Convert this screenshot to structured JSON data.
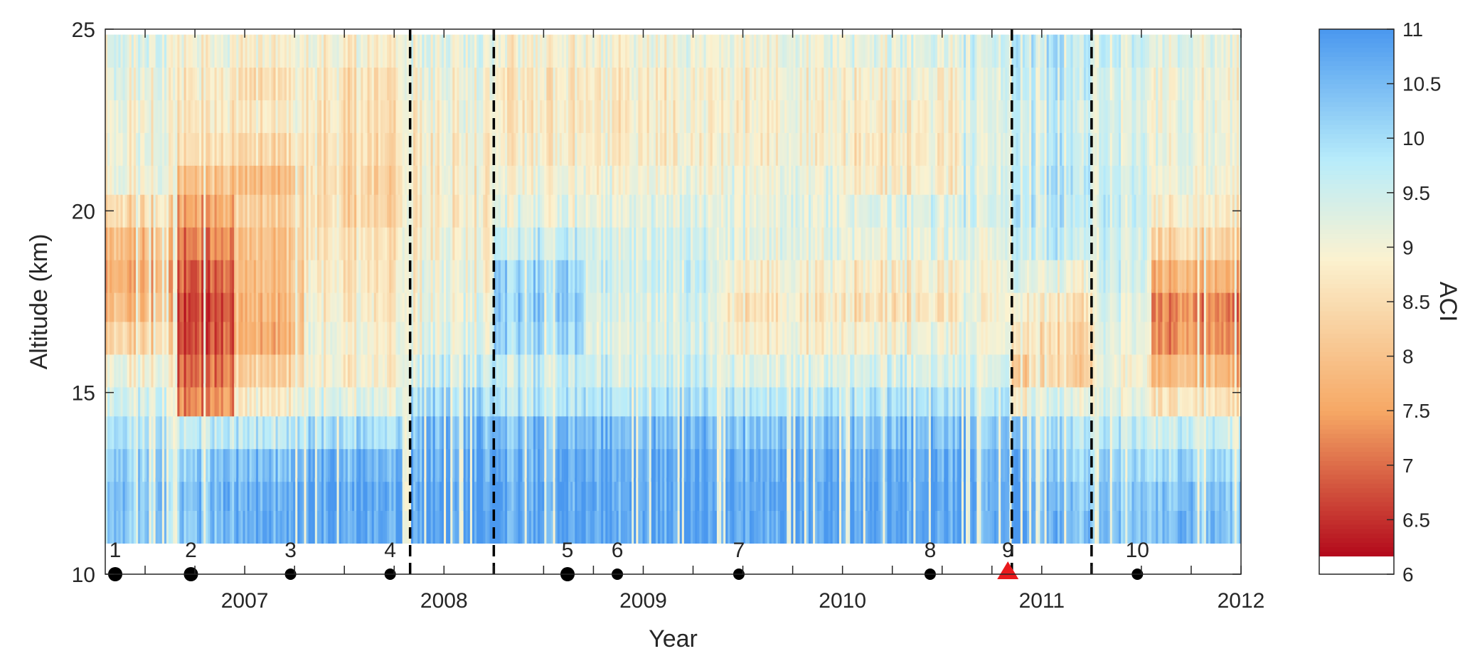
{
  "chart_data": {
    "type": "heatmap",
    "title": "",
    "xlabel": "Year",
    "ylabel": "Altitude (km)",
    "xlim": [
      2006.3,
      2012.0
    ],
    "ylim": [
      10,
      25
    ],
    "x_ticks": [
      2007,
      2008,
      2009,
      2010,
      2011,
      2012
    ],
    "x_tick_labels": [
      "2007",
      "2008",
      "2009",
      "2010",
      "2011",
      "2012"
    ],
    "y_ticks": [
      10,
      15,
      20,
      25
    ],
    "y_tick_labels": [
      "10",
      "15",
      "20",
      "25"
    ],
    "colorbar": {
      "label": "ACI",
      "range": [
        6,
        11
      ],
      "ticks": [
        6,
        6.5,
        7,
        7.5,
        8,
        8.5,
        9,
        9.5,
        10,
        10.5,
        11
      ],
      "tick_labels": [
        "6",
        "6.5",
        "7",
        "7.5",
        "8",
        "8.5",
        "9",
        "9.5",
        "10",
        "10.5",
        "11"
      ],
      "colors": {
        "low": "#b2071a",
        "mid_low": "#f6a865",
        "mid": "#fbf2d0",
        "mid_high": "#b8ecfa",
        "high": "#4a98ef",
        "below_range": "#ffffff"
      }
    },
    "altitude_levels_km": [
      11.3,
      12.2,
      13.0,
      13.9,
      14.8,
      15.6,
      16.5,
      17.4,
      18.2,
      19.1,
      20.0,
      20.9,
      21.7,
      22.6,
      23.5,
      24.4
    ],
    "time_segments": [
      {
        "start": 2006.3,
        "end": 2006.65,
        "aci": [
          10.2,
          10.3,
          10.1,
          9.8,
          9.4,
          9.0,
          8.2,
          7.8,
          7.6,
          7.8,
          8.4,
          9.0,
          9.0,
          9.0,
          9.1,
          9.3
        ]
      },
      {
        "start": 2006.65,
        "end": 2006.95,
        "aci": [
          10.4,
          10.5,
          10.3,
          9.7,
          7.3,
          7.0,
          6.8,
          6.7,
          6.9,
          7.2,
          7.6,
          8.0,
          8.5,
          8.7,
          8.8,
          9.0
        ]
      },
      {
        "start": 2006.95,
        "end": 2007.3,
        "aci": [
          10.8,
          10.7,
          10.5,
          9.8,
          8.9,
          8.3,
          7.8,
          7.9,
          8.0,
          8.1,
          8.3,
          8.0,
          8.5,
          8.8,
          8.6,
          8.9
        ]
      },
      {
        "start": 2007.3,
        "end": 2007.83,
        "aci": [
          10.8,
          10.8,
          10.6,
          10.0,
          9.3,
          8.9,
          9.0,
          8.8,
          8.7,
          8.6,
          8.4,
          8.4,
          8.5,
          8.6,
          8.6,
          8.9
        ]
      },
      {
        "start": 2007.83,
        "end": 2008.25,
        "aci": [
          10.9,
          10.9,
          10.7,
          10.5,
          10.0,
          9.5,
          9.2,
          9.1,
          9.0,
          8.9,
          8.8,
          8.8,
          8.8,
          8.9,
          9.0,
          9.2
        ]
      },
      {
        "start": 2008.25,
        "end": 2008.7,
        "aci": [
          10.8,
          10.8,
          10.7,
          10.5,
          9.8,
          9.6,
          10.1,
          10.2,
          10.1,
          9.6,
          9.2,
          9.0,
          8.8,
          8.7,
          8.7,
          8.9
        ]
      },
      {
        "start": 2008.7,
        "end": 2009.4,
        "aci": [
          10.8,
          10.8,
          10.7,
          10.5,
          9.9,
          9.5,
          9.3,
          9.4,
          9.5,
          9.4,
          9.2,
          9.0,
          8.8,
          8.8,
          8.8,
          9.0
        ]
      },
      {
        "start": 2009.4,
        "end": 2010.0,
        "aci": [
          10.8,
          10.8,
          10.7,
          10.4,
          9.8,
          9.3,
          8.9,
          8.7,
          8.9,
          9.2,
          9.2,
          9.1,
          8.9,
          8.9,
          8.9,
          9.1
        ]
      },
      {
        "start": 2010.0,
        "end": 2010.6,
        "aci": [
          10.8,
          10.8,
          10.7,
          10.4,
          9.9,
          9.4,
          9.0,
          8.6,
          8.8,
          9.1,
          9.3,
          8.8,
          8.7,
          8.8,
          8.9,
          9.2
        ]
      },
      {
        "start": 2010.6,
        "end": 2010.85,
        "aci": [
          10.8,
          10.8,
          10.7,
          10.5,
          9.9,
          9.5,
          9.2,
          9.0,
          9.1,
          9.3,
          9.6,
          9.5,
          9.4,
          9.4,
          9.5,
          9.6
        ]
      },
      {
        "start": 2010.85,
        "end": 2010.93,
        "aci": [
          10.9,
          10.8,
          10.6,
          10.3,
          8.5,
          7.8,
          8.4,
          8.7,
          9.2,
          9.5,
          9.7,
          9.6,
          9.5,
          9.5,
          9.6,
          9.7
        ]
      },
      {
        "start": 2010.93,
        "end": 2011.25,
        "aci": [
          10.5,
          10.4,
          10.2,
          9.9,
          9.3,
          8.3,
          8.4,
          8.6,
          9.1,
          9.6,
          9.8,
          9.8,
          9.7,
          9.6,
          9.7,
          9.8
        ]
      },
      {
        "start": 2011.25,
        "end": 2011.55,
        "aci": [
          10.4,
          10.3,
          10.1,
          9.7,
          9.2,
          9.0,
          9.2,
          9.3,
          9.4,
          9.5,
          9.6,
          9.5,
          9.4,
          9.3,
          9.4,
          9.6
        ]
      },
      {
        "start": 2011.55,
        "end": 2012.0,
        "aci": [
          10.4,
          10.3,
          10.0,
          9.5,
          8.6,
          7.8,
          7.3,
          7.2,
          7.7,
          8.3,
          8.8,
          9.0,
          9.1,
          9.0,
          9.0,
          9.2
        ]
      }
    ],
    "vertical_dashed_lines": [
      2007.83,
      2008.25,
      2010.85,
      2011.25
    ],
    "events": [
      {
        "label": "1",
        "x": 2006.35,
        "marker": "circle-large"
      },
      {
        "label": "2",
        "x": 2006.73,
        "marker": "circle-large"
      },
      {
        "label": "3",
        "x": 2007.23,
        "marker": "circle"
      },
      {
        "label": "4",
        "x": 2007.73,
        "marker": "circle"
      },
      {
        "label": "5",
        "x": 2008.62,
        "marker": "circle-large"
      },
      {
        "label": "6",
        "x": 2008.87,
        "marker": "circle"
      },
      {
        "label": "7",
        "x": 2009.48,
        "marker": "circle"
      },
      {
        "label": "8",
        "x": 2010.44,
        "marker": "circle"
      },
      {
        "label": "9",
        "x": 2010.83,
        "marker": "triangle"
      },
      {
        "label": "10",
        "x": 2011.48,
        "marker": "circle"
      }
    ],
    "marker_colors": {
      "circle": "#000000",
      "triangle": "#e8191c"
    }
  }
}
